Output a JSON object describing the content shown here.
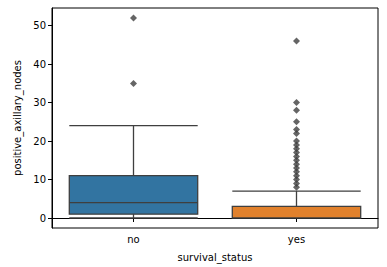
{
  "chart_data": {
    "type": "box",
    "x_label": "survival_status",
    "y_label": "positive_axillary_nodes",
    "categories": [
      "no",
      "yes"
    ],
    "boxes": [
      {
        "min": 0,
        "q1": 1,
        "median": 4,
        "q3": 11,
        "max": 24,
        "outliers": [
          35,
          52
        ]
      },
      {
        "min": 0,
        "q1": 0,
        "median": 0,
        "q3": 3,
        "max": 7,
        "outliers": [
          8,
          9,
          10,
          11,
          12,
          13,
          14,
          15,
          16,
          17,
          18,
          19,
          20,
          22,
          23,
          25,
          28,
          30,
          46
        ]
      }
    ],
    "colors": [
      "#3274a1",
      "#e1812c"
    ],
    "marker": "diamond",
    "ylim": [
      -2.6,
      54.6
    ],
    "yticks": [
      0,
      10,
      20,
      30,
      40,
      50
    ],
    "grid": false
  }
}
